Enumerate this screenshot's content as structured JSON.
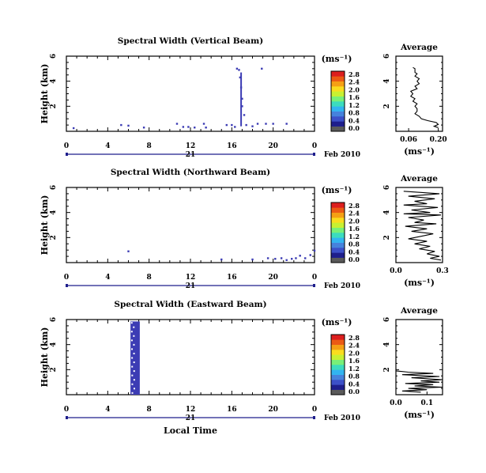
{
  "chart_data": [
    {
      "type": "heatmap",
      "title": "Spectral Width (Vertical Beam)",
      "ylabel": "Height (km)",
      "yticks": [
        "2",
        "4",
        "6"
      ],
      "xticks": [
        "0",
        "4",
        "8",
        "12",
        "16",
        "20",
        "0"
      ],
      "xlim": [
        0,
        24
      ],
      "ylim": [
        0,
        6
      ],
      "day_label": "21",
      "date_label": "Feb 2010",
      "colorbar": {
        "unit": "(ms⁻¹)",
        "ticks": [
          "0.0",
          "0.4",
          "0.8",
          "1.2",
          "1.6",
          "2.0",
          "2.4",
          "2.8"
        ]
      },
      "points": [
        [
          0.7,
          0.25
        ],
        [
          5.3,
          0.5
        ],
        [
          6.0,
          0.45
        ],
        [
          7.5,
          0.3
        ],
        [
          10.7,
          0.6
        ],
        [
          11.3,
          0.35
        ],
        [
          11.8,
          0.35
        ],
        [
          12.4,
          0.3
        ],
        [
          13.3,
          0.6
        ],
        [
          13.5,
          0.3
        ],
        [
          15.5,
          0.5
        ],
        [
          16.0,
          0.5
        ],
        [
          16.3,
          0.35
        ],
        [
          16.5,
          5.0
        ],
        [
          16.7,
          4.9
        ],
        [
          16.8,
          4.3
        ],
        [
          16.9,
          3.5
        ],
        [
          17.0,
          2.6
        ],
        [
          17.0,
          2.0
        ],
        [
          17.2,
          1.3
        ],
        [
          17.4,
          0.5
        ],
        [
          18.0,
          0.4
        ],
        [
          18.5,
          0.6
        ],
        [
          18.9,
          5.0
        ],
        [
          19.3,
          0.6
        ],
        [
          20.0,
          0.6
        ],
        [
          21.3,
          0.6
        ]
      ],
      "average_panel": {
        "title": "Average",
        "unit": "(ms⁻¹)",
        "xticks": [
          "0.06",
          "0.20"
        ],
        "xlim": [
          0.0,
          0.22
        ],
        "ylim": [
          0,
          6
        ],
        "yticks": [
          "2",
          "4",
          "6"
        ],
        "profile": [
          [
            0.08,
            5.1
          ],
          [
            0.09,
            5.0
          ],
          [
            0.09,
            4.7
          ],
          [
            0.1,
            4.6
          ],
          [
            0.09,
            4.4
          ],
          [
            0.11,
            4.2
          ],
          [
            0.1,
            4.0
          ],
          [
            0.11,
            3.8
          ],
          [
            0.09,
            3.6
          ],
          [
            0.1,
            3.4
          ],
          [
            0.07,
            3.2
          ],
          [
            0.08,
            3.0
          ],
          [
            0.07,
            2.8
          ],
          [
            0.09,
            2.6
          ],
          [
            0.08,
            2.4
          ],
          [
            0.1,
            2.2
          ],
          [
            0.09,
            2.0
          ],
          [
            0.1,
            1.8
          ],
          [
            0.1,
            1.6
          ],
          [
            0.09,
            1.4
          ],
          [
            0.11,
            1.2
          ],
          [
            0.12,
            1.0
          ],
          [
            0.15,
            0.85
          ],
          [
            0.19,
            0.7
          ],
          [
            0.2,
            0.55
          ],
          [
            0.18,
            0.4
          ],
          [
            0.2,
            0.3
          ]
        ]
      }
    },
    {
      "type": "heatmap",
      "title": "Spectral Width (Northward Beam)",
      "ylabel": "Height (km)",
      "yticks": [
        "2",
        "4",
        "6"
      ],
      "xticks": [
        "0",
        "4",
        "8",
        "12",
        "16",
        "20",
        "0"
      ],
      "xlim": [
        0,
        24
      ],
      "ylim": [
        0,
        6
      ],
      "day_label": "21",
      "date_label": "Feb 2010",
      "colorbar": {
        "unit": "(ms⁻¹)",
        "ticks": [
          "0.0",
          "0.4",
          "0.8",
          "1.2",
          "1.6",
          "2.0",
          "2.4",
          "2.8"
        ]
      },
      "points": [
        [
          6.0,
          0.9
        ],
        [
          15.0,
          0.25
        ],
        [
          18.0,
          0.25
        ],
        [
          19.5,
          0.35
        ],
        [
          20.2,
          0.3
        ],
        [
          20.8,
          0.35
        ],
        [
          21.3,
          0.2
        ],
        [
          21.8,
          0.3
        ],
        [
          22.2,
          0.35
        ],
        [
          22.6,
          0.55
        ],
        [
          23.1,
          0.35
        ],
        [
          23.6,
          0.6
        ],
        [
          24.0,
          0.95
        ]
      ],
      "average_panel": {
        "title": "Average",
        "unit": "(ms⁻¹)",
        "xticks": [
          "0.0",
          "0.3"
        ],
        "xlim": [
          0.0,
          0.3
        ],
        "ylim": [
          0,
          6
        ],
        "yticks": [
          "2",
          "4",
          "6"
        ],
        "profile": [
          [
            0.05,
            5.7
          ],
          [
            0.28,
            5.5
          ],
          [
            0.08,
            5.3
          ],
          [
            0.25,
            5.1
          ],
          [
            0.12,
            4.9
          ],
          [
            0.2,
            4.7
          ],
          [
            0.05,
            4.6
          ],
          [
            0.27,
            4.4
          ],
          [
            0.1,
            4.2
          ],
          [
            0.22,
            4.0
          ],
          [
            0.05,
            3.9
          ],
          [
            0.29,
            3.8
          ],
          [
            0.08,
            3.6
          ],
          [
            0.18,
            3.4
          ],
          [
            0.12,
            3.2
          ],
          [
            0.26,
            3.1
          ],
          [
            0.06,
            2.9
          ],
          [
            0.2,
            2.7
          ],
          [
            0.1,
            2.5
          ],
          [
            0.24,
            2.3
          ],
          [
            0.16,
            2.1
          ],
          [
            0.08,
            1.9
          ],
          [
            0.2,
            1.7
          ],
          [
            0.12,
            1.5
          ],
          [
            0.22,
            1.3
          ],
          [
            0.15,
            1.1
          ],
          [
            0.25,
            0.9
          ],
          [
            0.2,
            0.7
          ],
          [
            0.28,
            0.5
          ],
          [
            0.22,
            0.35
          ],
          [
            0.29,
            0.2
          ]
        ]
      }
    },
    {
      "type": "heatmap",
      "title": "Spectral Width (Eastward Beam)",
      "ylabel": "Height (km)",
      "yticks": [
        "2",
        "4",
        "6"
      ],
      "xticks": [
        "0",
        "4",
        "8",
        "12",
        "16",
        "20",
        "0"
      ],
      "xlim": [
        0,
        24
      ],
      "ylim": [
        0,
        6
      ],
      "day_label": "21",
      "date_label": "Feb 2010",
      "xlabel": "Local Time",
      "colorbar": {
        "unit": "(ms⁻¹)",
        "ticks": [
          "0.0",
          "0.4",
          "0.8",
          "1.2",
          "1.6",
          "2.0",
          "2.4",
          "2.8"
        ]
      },
      "band": {
        "x_start": 6.2,
        "x_end": 7.1,
        "y_start": 0.0,
        "y_end": 5.85
      },
      "average_panel": {
        "title": "Average",
        "unit": "(ms⁻¹)",
        "xticks": [
          "0.0",
          "0.1"
        ],
        "xlim": [
          0.0,
          0.15
        ],
        "ylim": [
          0,
          6
        ],
        "yticks": [
          "2",
          "4",
          "6"
        ],
        "profile": [
          [
            0.0,
            1.9
          ],
          [
            0.04,
            1.8
          ],
          [
            0.12,
            1.7
          ],
          [
            0.02,
            1.6
          ],
          [
            0.14,
            1.45
          ],
          [
            0.05,
            1.35
          ],
          [
            0.15,
            1.2
          ],
          [
            0.08,
            1.1
          ],
          [
            0.14,
            1.0
          ],
          [
            0.03,
            0.9
          ],
          [
            0.12,
            0.8
          ],
          [
            0.06,
            0.7
          ],
          [
            0.15,
            0.6
          ],
          [
            0.04,
            0.5
          ],
          [
            0.1,
            0.4
          ],
          [
            0.02,
            0.3
          ],
          [
            0.08,
            0.2
          ]
        ]
      }
    }
  ]
}
